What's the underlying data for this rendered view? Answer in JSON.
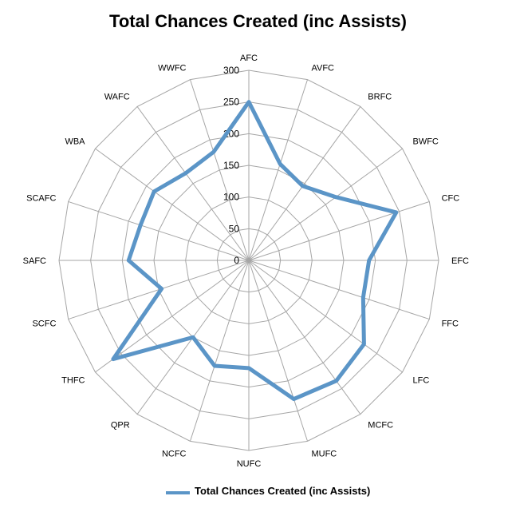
{
  "chart_data": {
    "type": "radar",
    "title": "Total Chances Created (inc Assists)",
    "categories": [
      "AFC",
      "AVFC",
      "BRFC",
      "BWFC",
      "CFC",
      "EFC",
      "FFC",
      "LFC",
      "MCFC",
      "MUFC",
      "NUFC",
      "NCFC",
      "QPR",
      "THFC",
      "SCFC",
      "SAFC",
      "SCAFC",
      "WBA",
      "WAFC",
      "WWFC"
    ],
    "series": [
      {
        "name": "Total Chances Created (inc Assists)",
        "color": "#5b95c7",
        "values": [
          250,
          160,
          145,
          170,
          245,
          190,
          190,
          225,
          235,
          230,
          170,
          175,
          150,
          265,
          145,
          190,
          180,
          185,
          170,
          180
        ]
      }
    ],
    "rlim": [
      0,
      300
    ],
    "ticks": [
      "0",
      "50",
      "100",
      "150",
      "200",
      "250",
      "300"
    ],
    "grid": true,
    "legend_position": "bottom"
  }
}
